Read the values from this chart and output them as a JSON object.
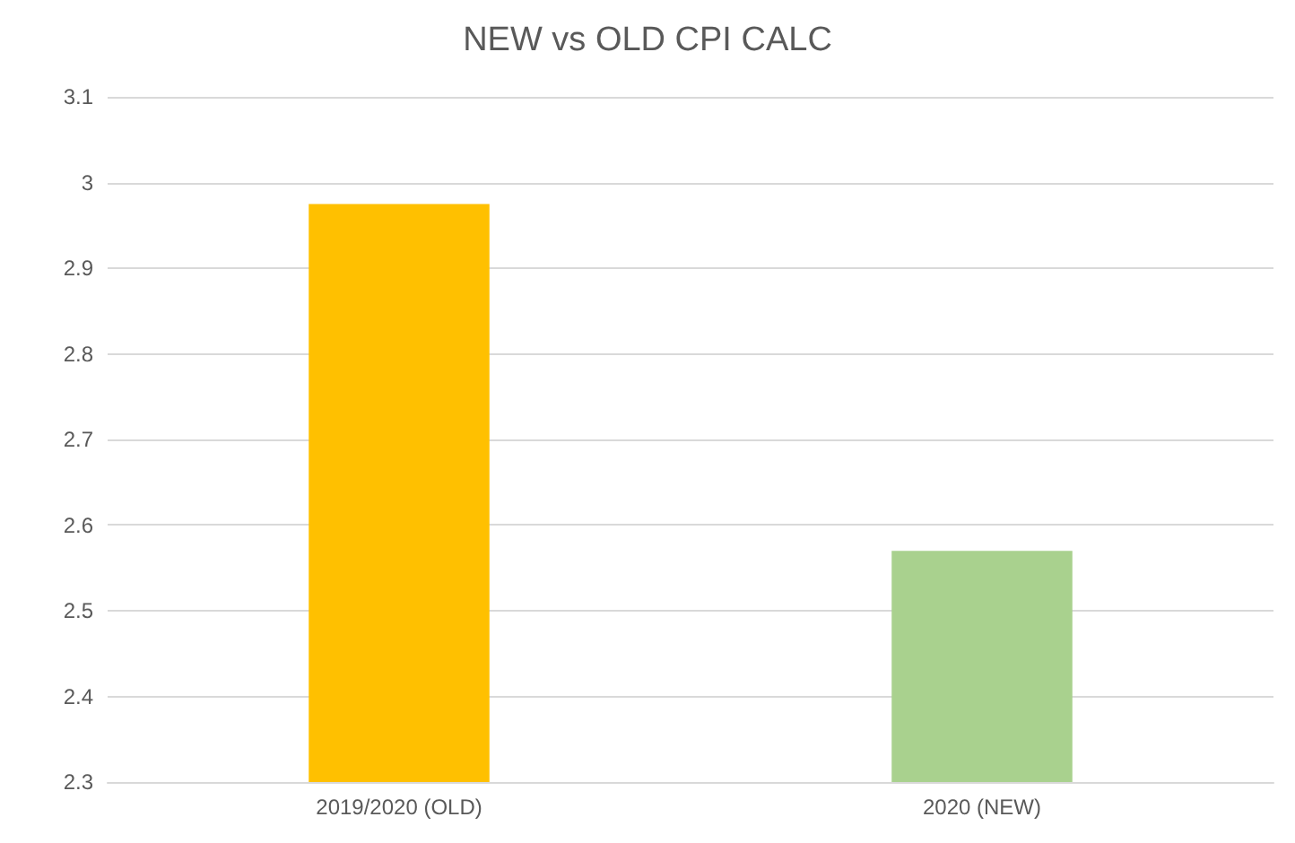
{
  "chart_data": {
    "type": "bar",
    "title": "NEW vs OLD CPI CALC",
    "categories": [
      "2019/2020 (OLD)",
      "2020 (NEW)"
    ],
    "values": [
      2.975,
      2.57
    ],
    "colors": [
      "#ffc000",
      "#a9d18e"
    ],
    "ylim": [
      2.3,
      3.1
    ],
    "yticks": [
      2.3,
      2.4,
      2.5,
      2.6,
      2.7,
      2.8,
      2.9,
      3,
      3.1
    ],
    "grid": "y"
  }
}
